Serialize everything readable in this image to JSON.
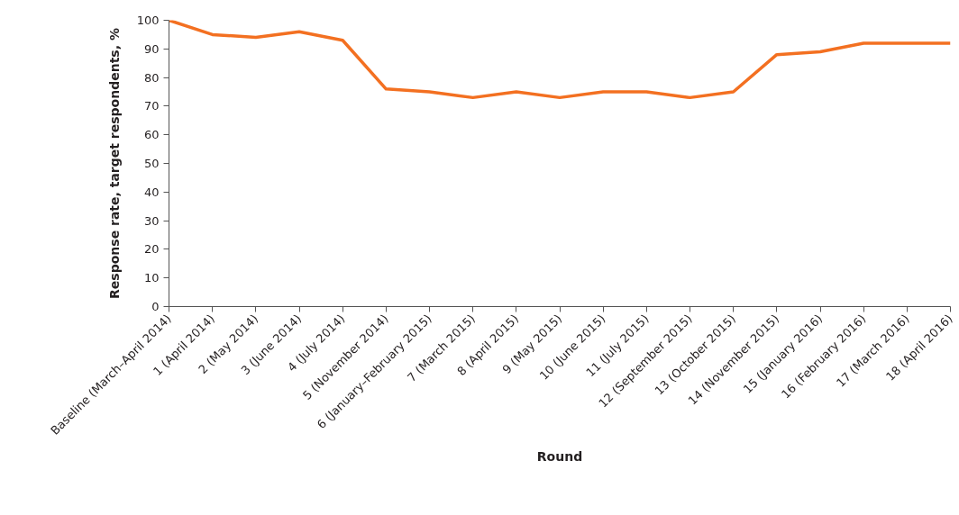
{
  "chart_data": {
    "type": "line",
    "xlabel": "Round",
    "ylabel": "Response rate, target respondents, %",
    "categories": [
      "Baseline (March–April 2014)",
      "1 (April 2014)",
      "2 (May 2014)",
      "3 (June 2014)",
      "4 (July 2014)",
      "5 (November 2014)",
      "6 (January–February 2015)",
      "7 (March 2015)",
      "8 (April 2015)",
      "9 (May 2015)",
      "10 (June 2015)",
      "11 (July 2015)",
      "12 (September 2015)",
      "13 (October 2015)",
      "14 (November 2015)",
      "15 (January 2016)",
      "16 (February 2016)",
      "17 (March 2016)",
      "18 (April 2016)"
    ],
    "series": [
      {
        "color": "#f37021",
        "values": [
          100,
          95,
          94,
          96,
          93,
          76,
          75,
          73,
          75,
          73,
          75,
          75,
          73,
          75,
          88,
          89,
          92,
          92,
          92
        ]
      }
    ],
    "ylim": [
      0,
      100
    ],
    "yticks": [
      0,
      10,
      20,
      30,
      40,
      50,
      60,
      70,
      80,
      90,
      100
    ],
    "grid": false,
    "marker": "none",
    "line_style": "solid"
  }
}
